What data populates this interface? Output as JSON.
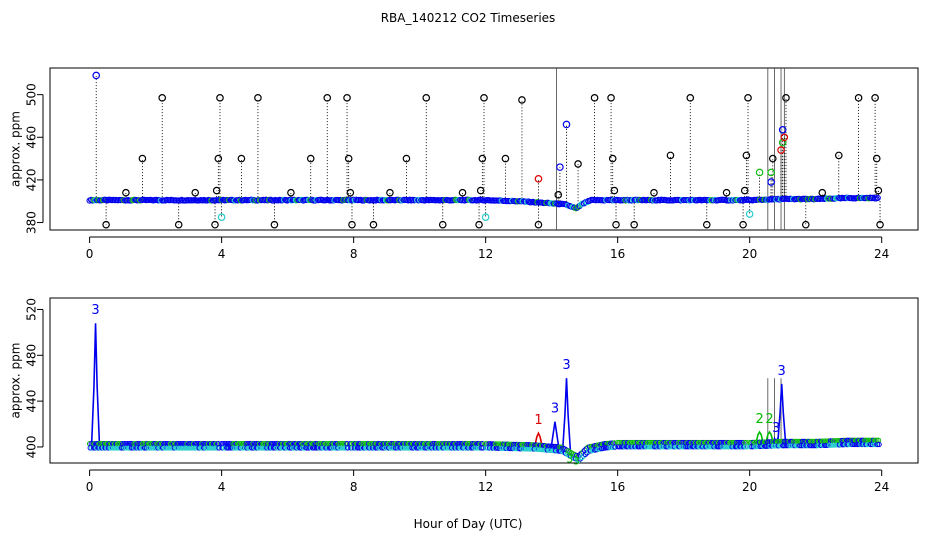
{
  "figure": {
    "title": "RBA_140212  CO2 Timeseries",
    "xlabel": "Hour of Day (UTC)"
  },
  "chart_data": [
    {
      "type": "scatter",
      "name": "top-panel",
      "ylabel": "approx. ppm",
      "xlim": [
        -1.2,
        25.1
      ],
      "ylim": [
        373,
        525
      ],
      "xticks": [
        0,
        4,
        8,
        12,
        16,
        20,
        24
      ],
      "yticks": [
        380,
        420,
        460,
        500
      ],
      "baseline": {
        "segments": [
          [
            0.0,
            4.0
          ],
          [
            4.0,
            7.9
          ],
          [
            7.9,
            14.1
          ],
          [
            14.1,
            14.8
          ],
          [
            14.8,
            16.2
          ],
          [
            16.2,
            20.0
          ],
          [
            20.0,
            21.0
          ],
          [
            21.0,
            23.9
          ]
        ],
        "values": [
          [
            0.0,
            401
          ],
          [
            4.0,
            401
          ],
          [
            7.9,
            401
          ],
          [
            12.0,
            401
          ],
          [
            13.0,
            400
          ],
          [
            14.0,
            398
          ],
          [
            14.4,
            397
          ],
          [
            14.6,
            395
          ],
          [
            14.75,
            393
          ],
          [
            14.9,
            397
          ],
          [
            15.2,
            401
          ],
          [
            16.0,
            401
          ],
          [
            20.0,
            401
          ],
          [
            21.0,
            402
          ],
          [
            22.0,
            402
          ],
          [
            23.0,
            403
          ],
          [
            23.9,
            403
          ]
        ]
      },
      "spikes_black": [
        [
          0.5,
          378
        ],
        [
          1.1,
          408
        ],
        [
          1.6,
          440
        ],
        [
          2.2,
          497
        ],
        [
          2.7,
          378
        ],
        [
          3.2,
          408
        ],
        [
          3.8,
          378
        ],
        [
          3.85,
          410
        ],
        [
          3.9,
          440
        ],
        [
          3.95,
          497
        ],
        [
          4.6,
          440
        ],
        [
          5.1,
          497
        ],
        [
          5.6,
          378
        ],
        [
          6.1,
          408
        ],
        [
          6.7,
          440
        ],
        [
          7.2,
          497
        ],
        [
          7.8,
          497
        ],
        [
          7.85,
          440
        ],
        [
          7.9,
          408
        ],
        [
          7.95,
          378
        ],
        [
          8.6,
          378
        ],
        [
          9.1,
          408
        ],
        [
          9.6,
          440
        ],
        [
          10.2,
          497
        ],
        [
          10.7,
          378
        ],
        [
          11.3,
          408
        ],
        [
          11.8,
          378
        ],
        [
          11.85,
          410
        ],
        [
          11.9,
          440
        ],
        [
          11.95,
          497
        ],
        [
          12.6,
          440
        ],
        [
          13.1,
          495
        ],
        [
          13.6,
          378
        ],
        [
          14.2,
          406
        ],
        [
          14.8,
          435
        ],
        [
          15.3,
          497
        ],
        [
          15.8,
          497
        ],
        [
          15.85,
          440
        ],
        [
          15.9,
          410
        ],
        [
          15.95,
          378
        ],
        [
          16.5,
          378
        ],
        [
          17.1,
          408
        ],
        [
          17.6,
          443
        ],
        [
          18.2,
          497
        ],
        [
          18.7,
          378
        ],
        [
          19.3,
          408
        ],
        [
          19.8,
          378
        ],
        [
          19.85,
          410
        ],
        [
          19.9,
          443
        ],
        [
          19.95,
          497
        ],
        [
          20.7,
          440
        ],
        [
          21.1,
          497
        ],
        [
          21.7,
          378
        ],
        [
          22.2,
          408
        ],
        [
          22.7,
          443
        ],
        [
          23.3,
          497
        ],
        [
          23.8,
          497
        ],
        [
          23.85,
          440
        ],
        [
          23.9,
          410
        ],
        [
          23.95,
          378
        ]
      ],
      "spikes_blue": [
        [
          0.2,
          518
        ],
        [
          14.25,
          432
        ],
        [
          14.45,
          472
        ],
        [
          20.65,
          418
        ],
        [
          21.0,
          467
        ]
      ],
      "spikes_red": [
        [
          13.6,
          421
        ],
        [
          20.95,
          448
        ],
        [
          21.05,
          460
        ]
      ],
      "spikes_green": [
        [
          20.3,
          427
        ],
        [
          20.65,
          427
        ],
        [
          21.0,
          455
        ]
      ],
      "spikes_cyan": [
        [
          4.0,
          385
        ],
        [
          12.0,
          385
        ],
        [
          20.0,
          388
        ]
      ],
      "vlines_solid": [
        14.15,
        20.55,
        20.75,
        20.95,
        21.05
      ]
    },
    {
      "type": "line",
      "name": "bottom-panel",
      "ylabel": "approx. ppm",
      "xlim": [
        -1.2,
        25.1
      ],
      "ylim": [
        386,
        530
      ],
      "xticks": [
        0,
        4,
        8,
        12,
        16,
        20,
        24
      ],
      "yticks": [
        400,
        440,
        480,
        520
      ],
      "segments": [
        [
          0.0,
          3.9
        ],
        [
          4.0,
          7.8
        ],
        [
          7.9,
          11.9
        ],
        [
          12.0,
          15.9
        ],
        [
          16.0,
          19.9
        ],
        [
          20.0,
          21.0
        ],
        [
          21.0,
          23.9
        ]
      ],
      "baseline_values": [
        [
          0.0,
          401
        ],
        [
          4.0,
          401
        ],
        [
          8.0,
          401
        ],
        [
          12.0,
          401
        ],
        [
          13.5,
          400
        ],
        [
          14.3,
          398
        ],
        [
          14.6,
          393
        ],
        [
          14.8,
          390
        ],
        [
          15.1,
          398
        ],
        [
          15.6,
          401
        ],
        [
          16.0,
          402
        ],
        [
          20.0,
          402
        ],
        [
          21.0,
          403
        ],
        [
          22.0,
          403
        ],
        [
          23.0,
          404
        ],
        [
          23.9,
          404
        ]
      ],
      "peaks": [
        {
          "label": "3",
          "x": 0.18,
          "y": 516,
          "color": "#0000ee"
        },
        {
          "label": "1",
          "x": 13.6,
          "y": 420,
          "color": "#dd0000"
        },
        {
          "label": "3",
          "x": 14.1,
          "y": 430,
          "color": "#0000ee"
        },
        {
          "label": "3",
          "x": 14.45,
          "y": 468,
          "color": "#0000ee"
        },
        {
          "label": "2",
          "x": 20.3,
          "y": 421,
          "color": "#00bb00"
        },
        {
          "label": "2",
          "x": 20.6,
          "y": 421,
          "color": "#00bb00"
        },
        {
          "label": "3",
          "x": 20.8,
          "y": 413,
          "color": "#0000ee"
        },
        {
          "label": "3",
          "x": 20.97,
          "y": 463,
          "color": "#0000ee"
        }
      ],
      "small_labels": [
        {
          "label": "3",
          "x": 14.55,
          "y": 390,
          "color": "#00bb00"
        },
        {
          "label": "3",
          "x": 14.75,
          "y": 388,
          "color": "#00bb00"
        }
      ],
      "vlines_solid": [
        20.55,
        20.75,
        20.95
      ]
    }
  ]
}
